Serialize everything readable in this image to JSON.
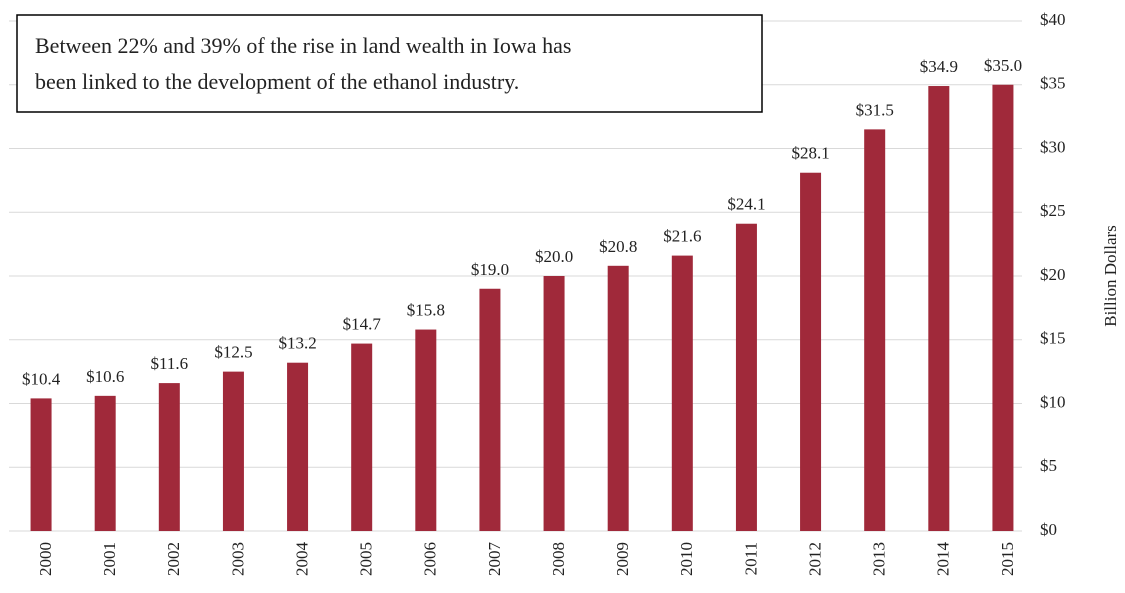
{
  "chart_data": {
    "type": "bar",
    "annotation": [
      "Between 22% and 39% of the rise in land wealth in Iowa has",
      "been linked to the development of the ethanol industry."
    ],
    "y_axis_label": "Billion Dollars",
    "categories": [
      "2000",
      "2001",
      "2002",
      "2003",
      "2004",
      "2005",
      "2006",
      "2007",
      "2008",
      "2009",
      "2010",
      "2011",
      "2012",
      "2013",
      "2014",
      "2015"
    ],
    "values": [
      10.4,
      10.6,
      11.6,
      12.5,
      13.2,
      14.7,
      15.8,
      19.0,
      20.0,
      20.8,
      21.6,
      24.1,
      28.1,
      31.5,
      34.9,
      35.0
    ],
    "value_labels": [
      "$10.4",
      "$10.6",
      "$11.6",
      "$12.5",
      "$13.2",
      "$14.7",
      "$15.8",
      "$19.0",
      "$20.0",
      "$20.8",
      "$21.6",
      "$24.1",
      "$28.1",
      "$31.5",
      "$34.9",
      "$35.0"
    ],
    "color": "#a0293a",
    "ylim": [
      0,
      40
    ],
    "yticks": [
      {
        "value": 0,
        "label": "$0"
      },
      {
        "value": 5,
        "label": "$5"
      },
      {
        "value": 10,
        "label": "$10"
      },
      {
        "value": 15,
        "label": "$15"
      },
      {
        "value": 20,
        "label": "$20"
      },
      {
        "value": 25,
        "label": "$25"
      },
      {
        "value": 30,
        "label": "$30"
      },
      {
        "value": 35,
        "label": "$35"
      },
      {
        "value": 40,
        "label": "$40"
      }
    ],
    "grid": true
  }
}
